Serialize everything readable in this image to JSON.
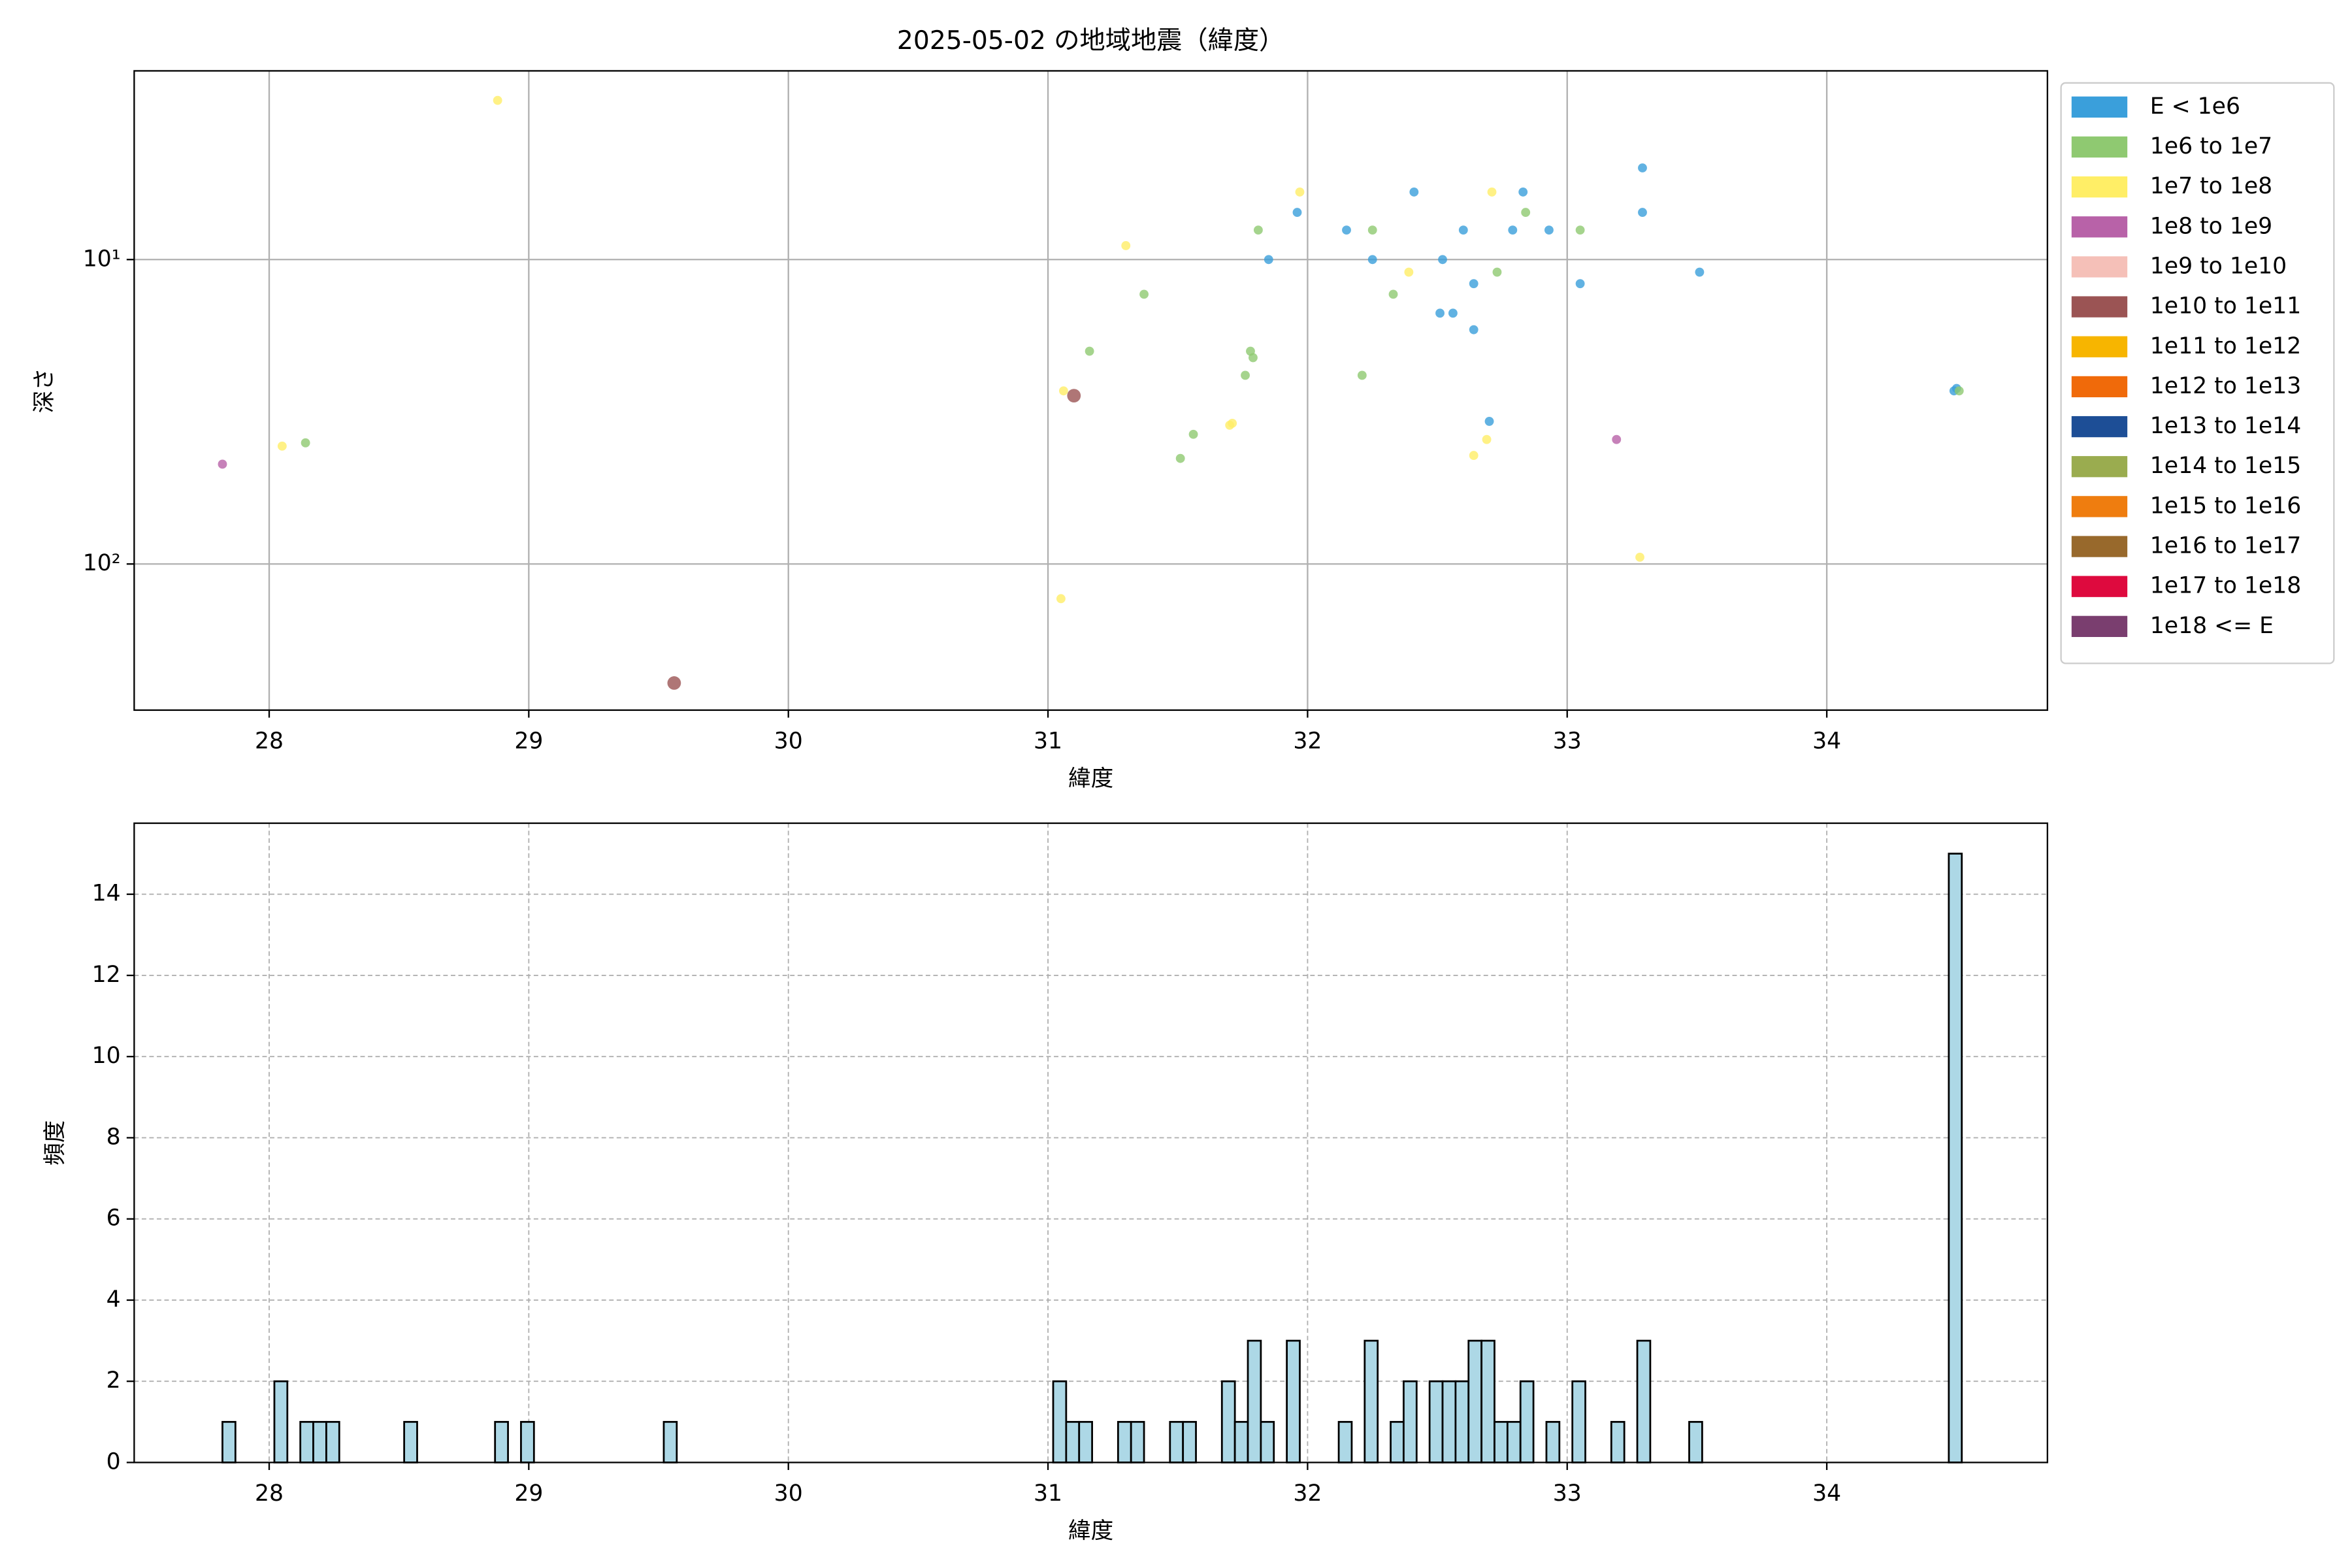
{
  "chart_data": [
    {
      "type": "scatter",
      "title": "2025-05-02 の地域地震（緯度）",
      "xlabel": "緯度",
      "ylabel": "深さ",
      "xlim": [
        27.48,
        34.85
      ],
      "xticks": [
        28,
        29,
        30,
        31,
        32,
        33,
        34
      ],
      "ylim": [
        2.4,
        302
      ],
      "log_y": true,
      "y_inverted": true,
      "yticks": [
        {
          "value": 10,
          "label": "10¹"
        },
        {
          "value": 100,
          "label": "10²"
        }
      ],
      "grid": true,
      "grid_style": "solid",
      "legend": "outside right",
      "series": [
        {
          "name": "E < 1e6",
          "color": "#3a9fdb",
          "marker_size": 3,
          "x": [
            31.96,
            32.15,
            32.25,
            32.41,
            31.85,
            32.52,
            32.51,
            32.56,
            32.6,
            32.64,
            32.64,
            32.7,
            32.79,
            32.83,
            32.93,
            33.05,
            33.29,
            33.29,
            33.51,
            34.49,
            34.5
          ],
          "y": [
            7,
            8,
            10,
            6,
            10,
            10,
            15,
            15,
            8,
            12,
            17,
            34,
            8,
            6,
            8,
            12,
            5,
            7,
            11,
            27,
            26.5
          ]
        },
        {
          "name": "1e6 to 1e7",
          "color": "#8fc971",
          "marker_size": 3,
          "x": [
            28.14,
            31.16,
            31.37,
            31.51,
            31.56,
            31.76,
            31.78,
            31.79,
            31.81,
            32.21,
            32.25,
            32.33,
            32.73,
            32.84,
            33.05,
            34.51
          ],
          "y": [
            40,
            20,
            13,
            45,
            37.5,
            24,
            20,
            21,
            8,
            24,
            8,
            13,
            11,
            7,
            8,
            27
          ]
        },
        {
          "name": "1e7 to 1e8",
          "color": "#ffee66",
          "marker_size": 3,
          "x": [
            28.88,
            28.05,
            31.06,
            31.05,
            31.3,
            31.7,
            31.71,
            31.97,
            32.39,
            32.64,
            32.69,
            32.71,
            33.28
          ],
          "y": [
            3,
            41,
            27,
            130,
            9,
            35,
            34.5,
            6,
            11,
            44,
            39,
            6,
            95
          ]
        },
        {
          "name": "1e8 to 1e9",
          "color": "#b862a8",
          "marker_size": 3,
          "x": [
            27.82,
            33.19
          ],
          "y": [
            47,
            39
          ]
        },
        {
          "name": "1e9 to 1e10",
          "color": "#f5c0b8",
          "marker_size": 3,
          "x": [],
          "y": []
        },
        {
          "name": "1e10 to 1e11",
          "color": "#9b5454",
          "marker_size": 4.5,
          "x": [
            29.56,
            31.1
          ],
          "y": [
            246,
            28
          ]
        },
        {
          "name": "1e11 to 1e12",
          "color": "#f7b500",
          "marker_size": 3,
          "x": [],
          "y": []
        },
        {
          "name": "1e12 to 1e13",
          "color": "#f06a0a",
          "marker_size": 3,
          "x": [],
          "y": []
        },
        {
          "name": "1e13 to 1e14",
          "color": "#1d4e96",
          "marker_size": 3,
          "x": [],
          "y": []
        },
        {
          "name": "1e14 to 1e15",
          "color": "#9aac4f",
          "marker_size": 3,
          "x": [],
          "y": []
        },
        {
          "name": "1e15 to 1e16",
          "color": "#ef7d0f",
          "marker_size": 3,
          "x": [],
          "y": []
        },
        {
          "name": "1e16 to 1e17",
          "color": "#98692c",
          "marker_size": 3,
          "x": [],
          "y": []
        },
        {
          "name": "1e17 to 1e18",
          "color": "#de0a3e",
          "marker_size": 3,
          "x": [],
          "y": []
        },
        {
          "name": "1e18 <= E",
          "color": "#7a3e6f",
          "marker_size": 3,
          "x": [],
          "y": []
        }
      ]
    },
    {
      "type": "histogram",
      "xlabel": "緯度",
      "ylabel": "頻度",
      "xlim": [
        27.48,
        34.85
      ],
      "xticks": [
        28,
        29,
        30,
        31,
        32,
        33,
        34
      ],
      "ylim": [
        0,
        15.75
      ],
      "yticks": [
        0,
        2,
        4,
        6,
        8,
        10,
        12,
        14
      ],
      "grid": true,
      "grid_style": "dashed",
      "color": "#add8e6",
      "edgecolor": "#000000",
      "bins": [
        27.82,
        27.87,
        27.92,
        27.97,
        28.02,
        28.07,
        28.12,
        28.17,
        28.22,
        28.27,
        28.32,
        28.37,
        28.42,
        28.47,
        28.52,
        28.57,
        28.62,
        28.67,
        28.72,
        28.77,
        28.82,
        28.87,
        28.92,
        28.97,
        29.02,
        29.07,
        29.12,
        29.17,
        29.22,
        29.27,
        29.32,
        29.37,
        29.42,
        29.47,
        29.52,
        29.57,
        29.62,
        29.67,
        29.72,
        29.77,
        29.82,
        29.87,
        29.92,
        29.97,
        30.02,
        30.07,
        30.12,
        30.17,
        30.22,
        30.27,
        30.32,
        30.37,
        30.42,
        30.47,
        30.52,
        30.57,
        30.62,
        30.67,
        30.72,
        30.77,
        30.82,
        30.87,
        30.92,
        30.97,
        31.02,
        31.07,
        31.12,
        31.17,
        31.22,
        31.27,
        31.32,
        31.37,
        31.42,
        31.47,
        31.52,
        31.57,
        31.62,
        31.67,
        31.72,
        31.77,
        31.82,
        31.87,
        31.92,
        31.97,
        32.02,
        32.07,
        32.12,
        32.17,
        32.22,
        32.27,
        32.32,
        32.37,
        32.42,
        32.47,
        32.52,
        32.57,
        32.62,
        32.67,
        32.72,
        32.77,
        32.82,
        32.87,
        32.92,
        32.97,
        33.02,
        33.07,
        33.12,
        33.17,
        33.22,
        33.27,
        33.32,
        33.37,
        33.42,
        33.47,
        33.52,
        33.57,
        33.62,
        33.67,
        33.72,
        33.77,
        33.82,
        33.87,
        33.92,
        33.97,
        34.02,
        34.07,
        34.12,
        34.17,
        34.22,
        34.27,
        34.32,
        34.37,
        34.42,
        34.47,
        34.52
      ],
      "values": [
        1,
        0,
        0,
        0,
        2,
        0,
        1,
        1,
        1,
        0,
        0,
        0,
        0,
        0,
        1,
        0,
        0,
        0,
        0,
        0,
        0,
        1,
        0,
        1,
        0,
        0,
        0,
        0,
        0,
        0,
        0,
        0,
        0,
        0,
        1,
        0,
        0,
        0,
        0,
        0,
        0,
        0,
        0,
        0,
        0,
        0,
        0,
        0,
        0,
        0,
        0,
        0,
        0,
        0,
        0,
        0,
        0,
        0,
        0,
        0,
        0,
        0,
        0,
        0,
        2,
        1,
        1,
        0,
        0,
        1,
        1,
        0,
        0,
        1,
        1,
        0,
        0,
        2,
        1,
        3,
        1,
        0,
        3,
        0,
        0,
        0,
        1,
        0,
        3,
        0,
        1,
        2,
        0,
        2,
        2,
        2,
        3,
        3,
        1,
        1,
        2,
        0,
        1,
        0,
        2,
        0,
        0,
        1,
        0,
        3,
        0,
        0,
        0,
        1,
        0,
        0,
        0,
        0,
        0,
        0,
        0,
        0,
        0,
        0,
        0,
        0,
        0,
        0,
        0,
        0,
        0,
        0,
        0,
        15
      ]
    }
  ]
}
